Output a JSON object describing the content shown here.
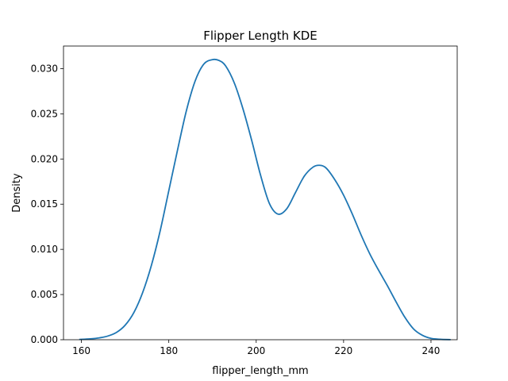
{
  "chart_data": {
    "type": "line",
    "title": "Flipper Length KDE",
    "xlabel": "flipper_length_mm",
    "ylabel": "Density",
    "xlim": [
      155.9,
      246.0
    ],
    "ylim": [
      0,
      0.0325
    ],
    "xticks": [
      160,
      180,
      200,
      220,
      240
    ],
    "xtick_labels": [
      "160",
      "180",
      "200",
      "220",
      "240"
    ],
    "yticks": [
      0,
      0.005,
      0.01,
      0.015,
      0.02,
      0.025,
      0.03
    ],
    "ytick_labels": [
      "0.000",
      "0.005",
      "0.010",
      "0.015",
      "0.020",
      "0.025",
      "0.030"
    ],
    "grid": false,
    "series": [
      {
        "color": "#1f77b4",
        "x": [
          159.5,
          162,
          164,
          166,
          168,
          170,
          172,
          174,
          176,
          178,
          180,
          182,
          184,
          186,
          188,
          190,
          191.5,
          193,
          195,
          197,
          199,
          201,
          203,
          205,
          207,
          209,
          211,
          213,
          214.5,
          216,
          218,
          220,
          222,
          224,
          226,
          228,
          230,
          232,
          234,
          236,
          238,
          240,
          242,
          244.5
        ],
        "y": [
          3e-05,
          0.0001,
          0.0002,
          0.0004,
          0.0008,
          0.0016,
          0.003,
          0.0052,
          0.0082,
          0.012,
          0.0165,
          0.021,
          0.0253,
          0.0286,
          0.0305,
          0.031,
          0.0309,
          0.0303,
          0.0284,
          0.0255,
          0.022,
          0.0182,
          0.0151,
          0.0139,
          0.0145,
          0.0163,
          0.0181,
          0.0191,
          0.0193,
          0.019,
          0.0177,
          0.016,
          0.0139,
          0.0116,
          0.0095,
          0.0077,
          0.006,
          0.0042,
          0.0025,
          0.0012,
          0.0005,
          0.00015,
          5e-05,
          1e-05
        ]
      }
    ]
  }
}
